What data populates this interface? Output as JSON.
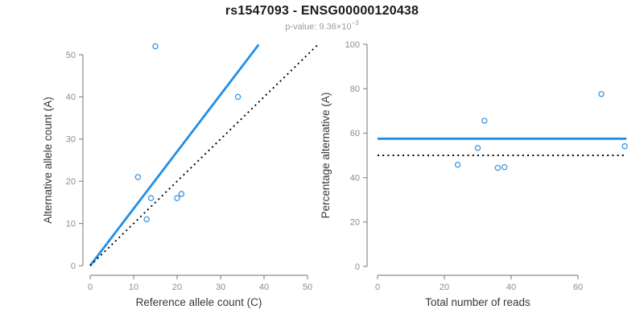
{
  "header": {
    "title": "rs1547093 - ENSG00000120438",
    "subtitle_base": "p-value: 9.36×10",
    "subtitle_exponent": "−3"
  },
  "colors": {
    "accent_blue": "#1E8FE8",
    "point_blue": "#3B97E3",
    "dotted_black": "#000000",
    "axis_gray": "#8C8C8C",
    "tick_text_gray": "#8C8C8C",
    "axis_title_dark": "#383838",
    "title_black": "#1A1A1A",
    "subtitle_gray": "#9B9B9B",
    "background": "#FFFFFF"
  },
  "chart_data": [
    {
      "type": "scatter",
      "name": "ref-vs-alt-count",
      "xlabel": "Reference allele count (C)",
      "ylabel": "Alternative allele count (A)",
      "xlim": [
        0,
        50
      ],
      "ylim": [
        0,
        52
      ],
      "xticks": [
        0,
        10,
        20,
        30,
        40,
        50
      ],
      "yticks": [
        0,
        10,
        20,
        30,
        40,
        50
      ],
      "grid": false,
      "points": [
        [
          15,
          52
        ],
        [
          11,
          21
        ],
        [
          14,
          16
        ],
        [
          13,
          11
        ],
        [
          20,
          16
        ],
        [
          21,
          17
        ],
        [
          34,
          40
        ]
      ],
      "lines": [
        {
          "kind": "abline",
          "name": "fit-line",
          "slope": 1.3516,
          "intercept": 0,
          "dash": false,
          "color_key": "accent_blue"
        },
        {
          "kind": "abline",
          "name": "identity-line",
          "slope": 1,
          "intercept": 0,
          "dash": true,
          "color_key": "dotted_black"
        }
      ]
    },
    {
      "type": "scatter",
      "name": "reads-vs-percentage",
      "xlabel": "Total number of reads",
      "ylabel": "Percentage alternative (A)",
      "xlim": [
        0,
        74
      ],
      "ylim": [
        0,
        100
      ],
      "xticks": [
        0,
        20,
        40,
        60
      ],
      "yticks": [
        0,
        20,
        40,
        60,
        80,
        100
      ],
      "grid": false,
      "points": [
        [
          24,
          45.8
        ],
        [
          30,
          53.3
        ],
        [
          32,
          65.6
        ],
        [
          36,
          44.4
        ],
        [
          38,
          44.7
        ],
        [
          67,
          77.6
        ],
        [
          74,
          54.1
        ]
      ],
      "lines": [
        {
          "kind": "hline",
          "name": "observed-mean-line",
          "y": 57.5,
          "dash": false,
          "color_key": "accent_blue"
        },
        {
          "kind": "hline",
          "name": "expected-50-line",
          "y": 50,
          "dash": true,
          "color_key": "dotted_black"
        }
      ]
    }
  ]
}
